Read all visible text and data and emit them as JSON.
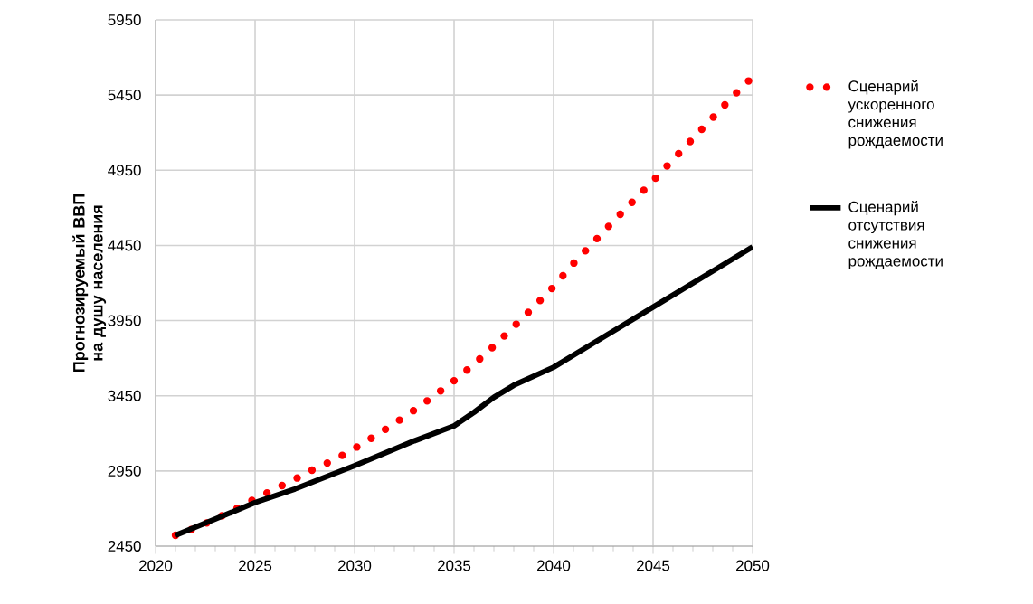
{
  "chart_data": {
    "type": "line",
    "ylabel": "Прогнозируемый  ВВП на душу населения",
    "xlim": [
      2020,
      2050
    ],
    "xticks": [
      2020,
      2025,
      2030,
      2035,
      2040,
      2045,
      2050
    ],
    "ylim": [
      2450,
      5950
    ],
    "yticks": [
      2450,
      2950,
      3450,
      3950,
      4450,
      4950,
      5450,
      5950
    ],
    "grid": true,
    "legend": "right",
    "marker": "none",
    "series": [
      {
        "name": "Сценарий ускоренного снижения рождаемости",
        "color": "#ff0000",
        "line_style": "dotted",
        "x": [
          2021,
          2022,
          2023,
          2024,
          2025,
          2026,
          2027,
          2028,
          2029,
          2030,
          2031,
          2032,
          2033,
          2034,
          2035,
          2036,
          2037,
          2038,
          2039,
          2040,
          2041,
          2042,
          2043,
          2044,
          2045,
          2046,
          2047,
          2048,
          2049,
          2050
        ],
        "values": [
          2522,
          2570,
          2630,
          2695,
          2765,
          2830,
          2895,
          2965,
          3025,
          3100,
          3180,
          3265,
          3355,
          3450,
          3550,
          3660,
          3780,
          3910,
          4040,
          4175,
          4330,
          4470,
          4610,
          4745,
          4880,
          5020,
          5160,
          5300,
          5440,
          5570
        ]
      },
      {
        "name": "Сценарий отсутствия снижения рождаемости",
        "color": "#000000",
        "line_style": "solid",
        "x": [
          2021,
          2023,
          2025,
          2027,
          2030,
          2033,
          2035,
          2036,
          2037,
          2038,
          2040,
          2042,
          2045,
          2048,
          2050
        ],
        "values": [
          2522,
          2630,
          2740,
          2830,
          2985,
          3150,
          3250,
          3340,
          3440,
          3520,
          3640,
          3800,
          4040,
          4280,
          4440
        ]
      }
    ]
  }
}
